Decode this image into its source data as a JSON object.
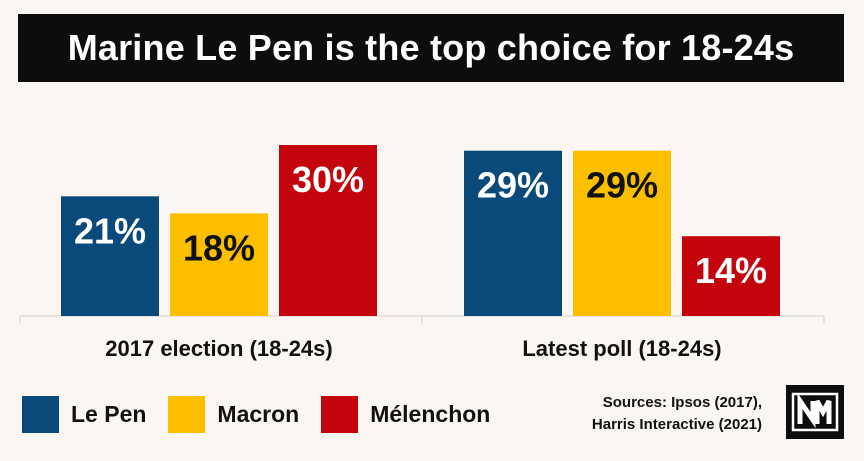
{
  "colors": {
    "background": "#fbf6f1",
    "title_bg": "#0d0d0d"
  },
  "chart_data": {
    "type": "bar",
    "title": "Marine Le Pen is the top choice for 18-24s",
    "categories": [
      "2017 election (18-24s)",
      "Latest poll (18-24s)"
    ],
    "series": [
      {
        "name": "Le Pen",
        "color": "#0a4a7a",
        "label_color": "#ffffff",
        "values": [
          21,
          29
        ]
      },
      {
        "name": "Macron",
        "color": "#fbbf00",
        "label_color": "#111111",
        "values": [
          18,
          29
        ]
      },
      {
        "name": "Mélenchon",
        "color": "#c4040c",
        "label_color": "#ffffff",
        "values": [
          30,
          14
        ]
      }
    ],
    "value_suffix": "%",
    "ylim": [
      0,
      30
    ],
    "grid": false,
    "legend": "bottom-left"
  },
  "sources": {
    "line1": "Sources: Ipsos (2017),",
    "line2": "Harris Interactive (2021)"
  },
  "logo_icon": "nm-logo-icon"
}
